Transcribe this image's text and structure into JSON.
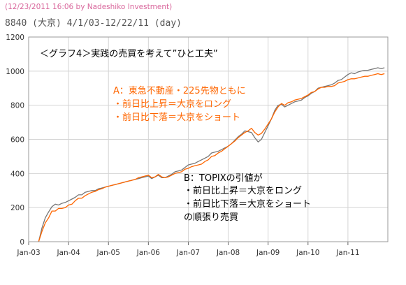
{
  "header": {
    "credit": "(12/23/2011 16:06 by Nadeshiko Investment)",
    "subtitle": "8840 (大京) 4/1/03-12/22/11 (day)"
  },
  "chart_data": {
    "type": "line",
    "title": "",
    "xlabel": "",
    "ylabel": "",
    "xlim": [
      "2003-01",
      "2012-01"
    ],
    "ylim": [
      0,
      1200
    ],
    "x_ticks": [
      "Jan-03",
      "Jan-04",
      "Jan-05",
      "Jan-06",
      "Jan-07",
      "Jan-08",
      "Jan-09",
      "Jan-10",
      "Jan-11"
    ],
    "y_ticks": [
      0,
      200,
      400,
      600,
      800,
      1000,
      1200
    ],
    "grid": true,
    "series": [
      {
        "label": "A",
        "color": "#ff6600",
        "points": [
          [
            "2003-04",
            0
          ],
          [
            "2003-05",
            60
          ],
          [
            "2003-06",
            110
          ],
          [
            "2003-07",
            140
          ],
          [
            "2003-08",
            180
          ],
          [
            "2003-09",
            180
          ],
          [
            "2003-10",
            195
          ],
          [
            "2003-11",
            195
          ],
          [
            "2003-12",
            200
          ],
          [
            "2004-01",
            215
          ],
          [
            "2004-02",
            220
          ],
          [
            "2004-03",
            240
          ],
          [
            "2004-04",
            255
          ],
          [
            "2004-05",
            255
          ],
          [
            "2004-06",
            270
          ],
          [
            "2004-07",
            280
          ],
          [
            "2004-08",
            290
          ],
          [
            "2004-09",
            295
          ],
          [
            "2004-10",
            305
          ],
          [
            "2004-11",
            310
          ],
          [
            "2004-12",
            320
          ],
          [
            "2005-01",
            325
          ],
          [
            "2005-02",
            330
          ],
          [
            "2005-03",
            335
          ],
          [
            "2005-04",
            340
          ],
          [
            "2005-05",
            345
          ],
          [
            "2005-06",
            350
          ],
          [
            "2005-07",
            355
          ],
          [
            "2005-08",
            360
          ],
          [
            "2005-09",
            365
          ],
          [
            "2005-10",
            375
          ],
          [
            "2005-11",
            380
          ],
          [
            "2005-12",
            385
          ],
          [
            "2006-01",
            390
          ],
          [
            "2006-02",
            375
          ],
          [
            "2006-03",
            380
          ],
          [
            "2006-04",
            395
          ],
          [
            "2006-05",
            380
          ],
          [
            "2006-06",
            375
          ],
          [
            "2006-07",
            380
          ],
          [
            "2006-08",
            390
          ],
          [
            "2006-09",
            400
          ],
          [
            "2006-10",
            405
          ],
          [
            "2006-11",
            410
          ],
          [
            "2006-12",
            425
          ],
          [
            "2007-01",
            430
          ],
          [
            "2007-02",
            440
          ],
          [
            "2007-03",
            445
          ],
          [
            "2007-04",
            450
          ],
          [
            "2007-05",
            455
          ],
          [
            "2007-06",
            470
          ],
          [
            "2007-07",
            480
          ],
          [
            "2007-08",
            500
          ],
          [
            "2007-09",
            505
          ],
          [
            "2007-10",
            520
          ],
          [
            "2007-11",
            530
          ],
          [
            "2007-12",
            545
          ],
          [
            "2008-01",
            560
          ],
          [
            "2008-02",
            575
          ],
          [
            "2008-03",
            590
          ],
          [
            "2008-04",
            610
          ],
          [
            "2008-05",
            625
          ],
          [
            "2008-06",
            640
          ],
          [
            "2008-07",
            650
          ],
          [
            "2008-08",
            665
          ],
          [
            "2008-09",
            640
          ],
          [
            "2008-10",
            625
          ],
          [
            "2008-11",
            635
          ],
          [
            "2008-12",
            660
          ],
          [
            "2009-01",
            690
          ],
          [
            "2009-02",
            720
          ],
          [
            "2009-03",
            760
          ],
          [
            "2009-04",
            790
          ],
          [
            "2009-05",
            810
          ],
          [
            "2009-06",
            800
          ],
          [
            "2009-07",
            815
          ],
          [
            "2009-08",
            820
          ],
          [
            "2009-09",
            830
          ],
          [
            "2009-10",
            835
          ],
          [
            "2009-11",
            840
          ],
          [
            "2009-12",
            850
          ],
          [
            "2010-01",
            860
          ],
          [
            "2010-02",
            875
          ],
          [
            "2010-03",
            880
          ],
          [
            "2010-04",
            895
          ],
          [
            "2010-05",
            905
          ],
          [
            "2010-06",
            905
          ],
          [
            "2010-07",
            910
          ],
          [
            "2010-08",
            910
          ],
          [
            "2010-09",
            915
          ],
          [
            "2010-10",
            930
          ],
          [
            "2010-11",
            935
          ],
          [
            "2010-12",
            940
          ],
          [
            "2011-01",
            950
          ],
          [
            "2011-02",
            955
          ],
          [
            "2011-03",
            955
          ],
          [
            "2011-04",
            960
          ],
          [
            "2011-05",
            965
          ],
          [
            "2011-06",
            970
          ],
          [
            "2011-07",
            970
          ],
          [
            "2011-08",
            975
          ],
          [
            "2011-09",
            980
          ],
          [
            "2011-10",
            985
          ],
          [
            "2011-11",
            980
          ],
          [
            "2011-12",
            985
          ]
        ]
      },
      {
        "label": "B",
        "color": "#777777",
        "points": [
          [
            "2003-04",
            0
          ],
          [
            "2003-05",
            80
          ],
          [
            "2003-06",
            140
          ],
          [
            "2003-07",
            175
          ],
          [
            "2003-08",
            205
          ],
          [
            "2003-09",
            220
          ],
          [
            "2003-10",
            215
          ],
          [
            "2003-11",
            225
          ],
          [
            "2003-12",
            230
          ],
          [
            "2004-01",
            240
          ],
          [
            "2004-02",
            250
          ],
          [
            "2004-03",
            260
          ],
          [
            "2004-04",
            275
          ],
          [
            "2004-05",
            275
          ],
          [
            "2004-06",
            290
          ],
          [
            "2004-07",
            295
          ],
          [
            "2004-08",
            300
          ],
          [
            "2004-09",
            300
          ],
          [
            "2004-10",
            310
          ],
          [
            "2004-11",
            315
          ],
          [
            "2004-12",
            320
          ],
          [
            "2005-01",
            325
          ],
          [
            "2005-02",
            330
          ],
          [
            "2005-03",
            335
          ],
          [
            "2005-04",
            340
          ],
          [
            "2005-05",
            345
          ],
          [
            "2005-06",
            350
          ],
          [
            "2005-07",
            355
          ],
          [
            "2005-08",
            360
          ],
          [
            "2005-09",
            365
          ],
          [
            "2005-10",
            370
          ],
          [
            "2005-11",
            375
          ],
          [
            "2005-12",
            380
          ],
          [
            "2006-01",
            385
          ],
          [
            "2006-02",
            370
          ],
          [
            "2006-03",
            380
          ],
          [
            "2006-04",
            390
          ],
          [
            "2006-05",
            375
          ],
          [
            "2006-06",
            375
          ],
          [
            "2006-07",
            385
          ],
          [
            "2006-08",
            395
          ],
          [
            "2006-09",
            410
          ],
          [
            "2006-10",
            415
          ],
          [
            "2006-11",
            420
          ],
          [
            "2006-12",
            435
          ],
          [
            "2007-01",
            450
          ],
          [
            "2007-02",
            455
          ],
          [
            "2007-03",
            460
          ],
          [
            "2007-04",
            470
          ],
          [
            "2007-05",
            480
          ],
          [
            "2007-06",
            490
          ],
          [
            "2007-07",
            500
          ],
          [
            "2007-08",
            520
          ],
          [
            "2007-09",
            525
          ],
          [
            "2007-10",
            530
          ],
          [
            "2007-11",
            540
          ],
          [
            "2007-12",
            550
          ],
          [
            "2008-01",
            560
          ],
          [
            "2008-02",
            575
          ],
          [
            "2008-03",
            595
          ],
          [
            "2008-04",
            615
          ],
          [
            "2008-05",
            630
          ],
          [
            "2008-06",
            650
          ],
          [
            "2008-07",
            645
          ],
          [
            "2008-08",
            640
          ],
          [
            "2008-09",
            610
          ],
          [
            "2008-10",
            585
          ],
          [
            "2008-11",
            600
          ],
          [
            "2008-12",
            640
          ],
          [
            "2009-01",
            680
          ],
          [
            "2009-02",
            720
          ],
          [
            "2009-03",
            770
          ],
          [
            "2009-04",
            800
          ],
          [
            "2009-05",
            805
          ],
          [
            "2009-06",
            790
          ],
          [
            "2009-07",
            800
          ],
          [
            "2009-08",
            810
          ],
          [
            "2009-09",
            820
          ],
          [
            "2009-10",
            825
          ],
          [
            "2009-11",
            830
          ],
          [
            "2009-12",
            845
          ],
          [
            "2010-01",
            855
          ],
          [
            "2010-02",
            870
          ],
          [
            "2010-03",
            880
          ],
          [
            "2010-04",
            900
          ],
          [
            "2010-05",
            905
          ],
          [
            "2010-06",
            910
          ],
          [
            "2010-07",
            915
          ],
          [
            "2010-08",
            920
          ],
          [
            "2010-09",
            930
          ],
          [
            "2010-10",
            945
          ],
          [
            "2010-11",
            950
          ],
          [
            "2010-12",
            965
          ],
          [
            "2011-01",
            980
          ],
          [
            "2011-02",
            990
          ],
          [
            "2011-03",
            985
          ],
          [
            "2011-04",
            995
          ],
          [
            "2011-05",
            1000
          ],
          [
            "2011-06",
            1005
          ],
          [
            "2011-07",
            1005
          ],
          [
            "2011-08",
            1010
          ],
          [
            "2011-09",
            1015
          ],
          [
            "2011-10",
            1020
          ],
          [
            "2011-11",
            1015
          ],
          [
            "2011-12",
            1020
          ]
        ]
      }
    ],
    "annotations": {
      "heading": "＜グラフ4＞実践の売買を考えて”ひと工夫”",
      "a_lines": [
        "A：東急不動産・225先物ともに",
        "・前日比上昇＝大京をロング",
        "・前日比下落＝大京をショート"
      ],
      "b_lines": [
        "B：TOPIXの引値が",
        "・前日比上昇＝大京をロング",
        "・前日比下落＝大京をショート",
        "の順張り売買"
      ]
    }
  },
  "colors": {
    "a_text": "#ff6600",
    "b_text": "#000000",
    "grid": "#d4d4d4",
    "plot_border": "#9a9a9a"
  }
}
